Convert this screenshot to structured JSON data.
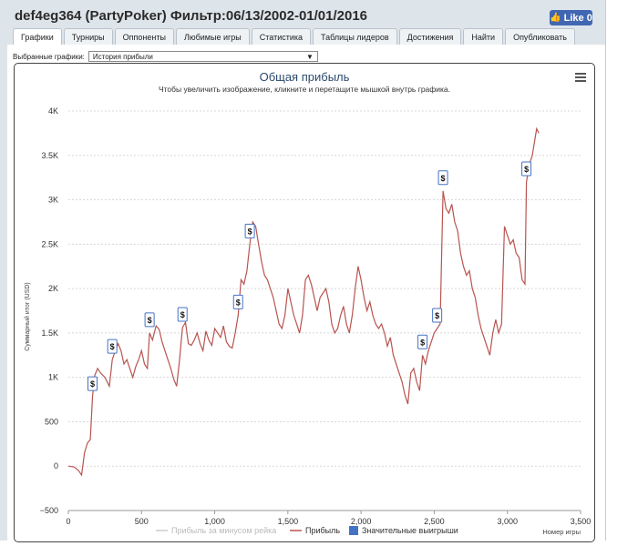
{
  "window": {
    "title": "def4eg364 (PartyPoker) Фильтр:06/13/2002-01/01/2016",
    "like_label": "Like 0"
  },
  "tabs": [
    {
      "label": "Графики",
      "active": true
    },
    {
      "label": "Турниры",
      "active": false
    },
    {
      "label": "Оппоненты",
      "active": false
    },
    {
      "label": "Любимые игры",
      "active": false
    },
    {
      "label": "Статистика",
      "active": false
    },
    {
      "label": "Таблицы лидеров",
      "active": false
    },
    {
      "label": "Достижения",
      "active": false
    },
    {
      "label": "Найти",
      "active": false
    },
    {
      "label": "Опубликовать",
      "active": false
    }
  ],
  "selector": {
    "label": "Выбранные графики:",
    "value": "История прибыли"
  },
  "chart_data": {
    "type": "line",
    "title": "Общая прибыль",
    "subtitle": "Чтобы увеличить изображение, кликните и перетащите мышкой внутрь графика.",
    "xlabel": "Номер игры",
    "ylabel": "Суммарный итог (USD)",
    "xlim": [
      0,
      3500
    ],
    "ylim": [
      -500,
      4000
    ],
    "x_ticks": [
      0,
      500,
      1000,
      1500,
      2000,
      2500,
      3000,
      3500
    ],
    "x_tick_labels": [
      "0",
      "500",
      "1,000",
      "1,500",
      "2,000",
      "2,500",
      "3,000",
      "3,500"
    ],
    "y_ticks": [
      -500,
      0,
      500,
      1000,
      1500,
      2000,
      2500,
      3000,
      3500,
      4000
    ],
    "y_tick_labels": [
      "−500",
      "0",
      "500",
      "1K",
      "1.5K",
      "2K",
      "2.5K",
      "3K",
      "3.5K",
      "4K"
    ],
    "grid": true,
    "legend_position": "bottom",
    "series": [
      {
        "name": "Прибыль за минусом рейка",
        "color": "#cccccc",
        "visible": false,
        "points": []
      },
      {
        "name": "Прибыль",
        "color": "#b85450",
        "points": [
          [
            0,
            0
          ],
          [
            40,
            -10
          ],
          [
            70,
            -50
          ],
          [
            90,
            -100
          ],
          [
            110,
            150
          ],
          [
            130,
            260
          ],
          [
            150,
            300
          ],
          [
            165,
            780
          ],
          [
            180,
            1020
          ],
          [
            200,
            1100
          ],
          [
            220,
            1050
          ],
          [
            250,
            1000
          ],
          [
            280,
            900
          ],
          [
            300,
            1200
          ],
          [
            320,
            1300
          ],
          [
            340,
            1380
          ],
          [
            360,
            1300
          ],
          [
            380,
            1150
          ],
          [
            400,
            1200
          ],
          [
            420,
            1100
          ],
          [
            440,
            1000
          ],
          [
            460,
            1120
          ],
          [
            480,
            1200
          ],
          [
            500,
            1300
          ],
          [
            520,
            1150
          ],
          [
            540,
            1100
          ],
          [
            555,
            1500
          ],
          [
            575,
            1420
          ],
          [
            600,
            1580
          ],
          [
            620,
            1540
          ],
          [
            640,
            1400
          ],
          [
            660,
            1300
          ],
          [
            680,
            1200
          ],
          [
            700,
            1100
          ],
          [
            720,
            980
          ],
          [
            740,
            900
          ],
          [
            760,
            1200
          ],
          [
            780,
            1560
          ],
          [
            800,
            1620
          ],
          [
            820,
            1380
          ],
          [
            840,
            1360
          ],
          [
            860,
            1420
          ],
          [
            880,
            1500
          ],
          [
            900,
            1380
          ],
          [
            920,
            1300
          ],
          [
            940,
            1520
          ],
          [
            960,
            1420
          ],
          [
            980,
            1360
          ],
          [
            1000,
            1550
          ],
          [
            1020,
            1500
          ],
          [
            1040,
            1450
          ],
          [
            1060,
            1580
          ],
          [
            1080,
            1400
          ],
          [
            1100,
            1350
          ],
          [
            1120,
            1330
          ],
          [
            1140,
            1500
          ],
          [
            1160,
            1700
          ],
          [
            1180,
            2100
          ],
          [
            1200,
            2050
          ],
          [
            1220,
            2200
          ],
          [
            1240,
            2500
          ],
          [
            1260,
            2750
          ],
          [
            1280,
            2700
          ],
          [
            1300,
            2500
          ],
          [
            1320,
            2300
          ],
          [
            1340,
            2150
          ],
          [
            1360,
            2100
          ],
          [
            1380,
            2000
          ],
          [
            1400,
            1900
          ],
          [
            1420,
            1750
          ],
          [
            1440,
            1600
          ],
          [
            1460,
            1550
          ],
          [
            1480,
            1700
          ],
          [
            1500,
            2000
          ],
          [
            1520,
            1850
          ],
          [
            1540,
            1700
          ],
          [
            1560,
            1600
          ],
          [
            1580,
            1500
          ],
          [
            1600,
            1700
          ],
          [
            1620,
            2100
          ],
          [
            1640,
            2150
          ],
          [
            1660,
            2050
          ],
          [
            1680,
            1900
          ],
          [
            1700,
            1750
          ],
          [
            1720,
            1900
          ],
          [
            1740,
            1950
          ],
          [
            1760,
            2000
          ],
          [
            1780,
            1850
          ],
          [
            1800,
            1600
          ],
          [
            1820,
            1500
          ],
          [
            1840,
            1550
          ],
          [
            1860,
            1700
          ],
          [
            1880,
            1800
          ],
          [
            1900,
            1600
          ],
          [
            1920,
            1500
          ],
          [
            1940,
            1700
          ],
          [
            1960,
            2000
          ],
          [
            1980,
            2250
          ],
          [
            2000,
            2100
          ],
          [
            2020,
            1900
          ],
          [
            2040,
            1750
          ],
          [
            2060,
            1850
          ],
          [
            2080,
            1700
          ],
          [
            2100,
            1600
          ],
          [
            2120,
            1550
          ],
          [
            2140,
            1600
          ],
          [
            2160,
            1500
          ],
          [
            2180,
            1350
          ],
          [
            2200,
            1450
          ],
          [
            2220,
            1250
          ],
          [
            2240,
            1150
          ],
          [
            2260,
            1050
          ],
          [
            2280,
            950
          ],
          [
            2300,
            800
          ],
          [
            2320,
            700
          ],
          [
            2340,
            1050
          ],
          [
            2360,
            1100
          ],
          [
            2380,
            950
          ],
          [
            2400,
            850
          ],
          [
            2420,
            1250
          ],
          [
            2440,
            1150
          ],
          [
            2460,
            1300
          ],
          [
            2480,
            1400
          ],
          [
            2500,
            1500
          ],
          [
            2520,
            1550
          ],
          [
            2540,
            1600
          ],
          [
            2560,
            3100
          ],
          [
            2580,
            2900
          ],
          [
            2600,
            2850
          ],
          [
            2620,
            2950
          ],
          [
            2640,
            2750
          ],
          [
            2660,
            2650
          ],
          [
            2680,
            2400
          ],
          [
            2700,
            2250
          ],
          [
            2720,
            2150
          ],
          [
            2740,
            2200
          ],
          [
            2760,
            2000
          ],
          [
            2780,
            1900
          ],
          [
            2800,
            1700
          ],
          [
            2820,
            1550
          ],
          [
            2840,
            1450
          ],
          [
            2860,
            1350
          ],
          [
            2880,
            1250
          ],
          [
            2900,
            1500
          ],
          [
            2920,
            1650
          ],
          [
            2940,
            1500
          ],
          [
            2960,
            1600
          ],
          [
            2980,
            2700
          ],
          [
            3000,
            2600
          ],
          [
            3020,
            2500
          ],
          [
            3040,
            2550
          ],
          [
            3060,
            2400
          ],
          [
            3080,
            2350
          ],
          [
            3100,
            2100
          ],
          [
            3120,
            2050
          ],
          [
            3130,
            3200
          ],
          [
            3150,
            3400
          ],
          [
            3170,
            3500
          ],
          [
            3185,
            3650
          ],
          [
            3200,
            3800
          ],
          [
            3215,
            3750
          ]
        ]
      }
    ],
    "markers": {
      "name": "Значительные выигрыши",
      "symbol": "$",
      "color": "#4472c4",
      "points": [
        [
          165,
          780
        ],
        [
          300,
          1200
        ],
        [
          555,
          1500
        ],
        [
          780,
          1560
        ],
        [
          1160,
          1700
        ],
        [
          1240,
          2500
        ],
        [
          2420,
          1250
        ],
        [
          2520,
          1550
        ],
        [
          2560,
          3100
        ],
        [
          3130,
          3200
        ]
      ]
    }
  }
}
